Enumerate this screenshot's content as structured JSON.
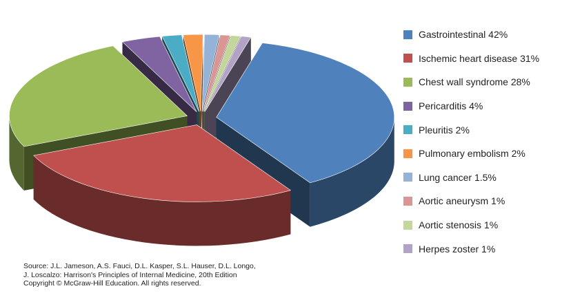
{
  "chart_data": {
    "type": "pie",
    "title": "",
    "three_d": true,
    "exploded": true,
    "legend_position": "right",
    "slices": [
      {
        "label": "Gastrointestinal",
        "display": "Gastrointestinal 42%",
        "value": 42,
        "color": "#4f81bd"
      },
      {
        "label": "Ischemic heart disease",
        "display": "Ischemic heart disease 31%",
        "value": 31,
        "color": "#c0504d"
      },
      {
        "label": "Chest wall syndrome",
        "display": "Chest wall syndrome 28%",
        "value": 28,
        "color": "#9bbb59"
      },
      {
        "label": "Pericarditis",
        "display": "Pericarditis 4%",
        "value": 4,
        "color": "#8064a2"
      },
      {
        "label": "Pleuritis",
        "display": "Pleuritis 2%",
        "value": 2,
        "color": "#4bacc6"
      },
      {
        "label": "Pulmonary embolism",
        "display": "Pulmonary embolism 2%",
        "value": 2,
        "color": "#f79646"
      },
      {
        "label": "Lung cancer",
        "display": "Lung cancer 1.5%",
        "value": 1.5,
        "color": "#95b3d7"
      },
      {
        "label": "Aortic aneurysm",
        "display": "Aortic aneurysm 1%",
        "value": 1,
        "color": "#d99694"
      },
      {
        "label": "Aortic stenosis",
        "display": "Aortic stenosis 1%",
        "value": 1,
        "color": "#c3d69b"
      },
      {
        "label": "Herpes zoster",
        "display": "Herpes zoster 1%",
        "value": 1,
        "color": "#b3a2c7"
      }
    ]
  },
  "source": {
    "line1": "Source: J.L. Jameson, A.S. Fauci, D.L. Kasper, S.L. Hauser, D.L. Longo,",
    "line2_prefix": "J. Loscalzo:",
    "line2_title": "Harrison's Principles of Internal Medicine, 20th Edition",
    "line3": "Copyright © McGraw-Hill Education. All rights reserved."
  }
}
